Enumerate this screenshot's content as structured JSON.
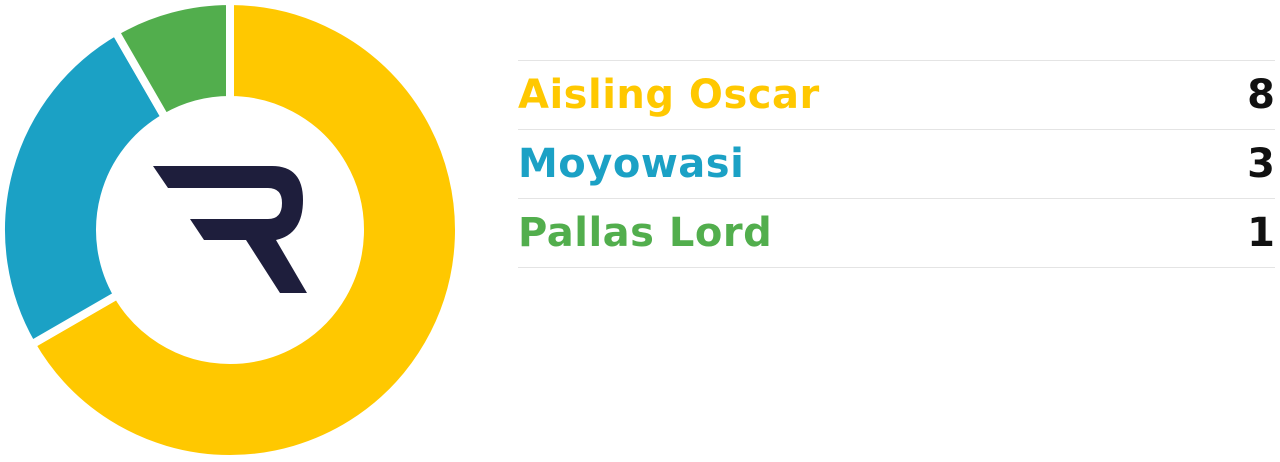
{
  "chart_data": {
    "type": "pie",
    "variant": "donut",
    "categories": [
      "Aisling Oscar",
      "Moyowasi",
      "Pallas Lord"
    ],
    "values": [
      8,
      3,
      1
    ],
    "colors": [
      "#FFC800",
      "#1BA1C5",
      "#52AE4D"
    ],
    "legend_placement": "right"
  },
  "logo": {
    "letter": "R",
    "color": "#1E1E3C"
  }
}
